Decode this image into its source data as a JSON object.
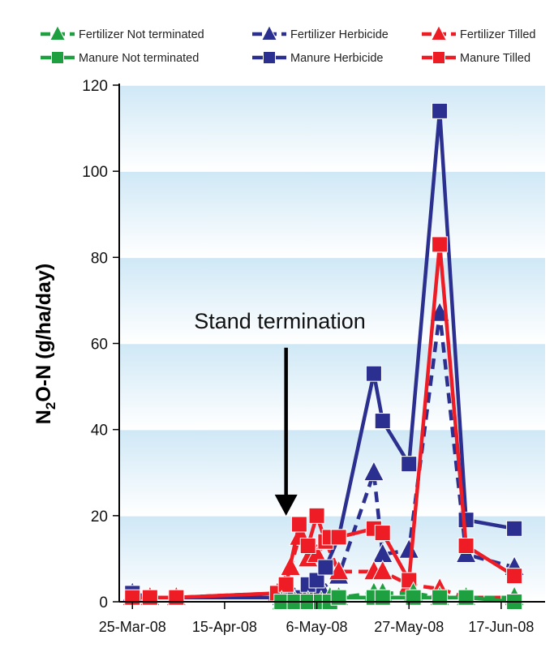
{
  "chart_data": {
    "type": "line",
    "title": "",
    "xlabel": "",
    "ylabel": "N2O-N (g/ha/day)",
    "ylabel_parts": {
      "before": "N",
      "sub": "2",
      "after": "O-N (g/ha/day)"
    },
    "x_type": "date",
    "xlim": [
      "2008-03-22",
      "2008-06-27"
    ],
    "ylim": [
      0,
      120
    ],
    "y_ticks": [
      0,
      20,
      40,
      60,
      80,
      100,
      120
    ],
    "x_ticks": [
      {
        "date": "2008-03-25",
        "label": "25-Mar-08"
      },
      {
        "date": "2008-04-15",
        "label": "15-Apr-08"
      },
      {
        "date": "2008-05-06",
        "label": "6-May-08"
      },
      {
        "date": "2008-05-27",
        "label": "27-May-08"
      },
      {
        "date": "2008-06-17",
        "label": "17-Jun-08"
      }
    ],
    "background": "light blue gradient bands between gridlines",
    "grid": true,
    "legend_position": "top",
    "annotations": [
      {
        "text": "Stand termination",
        "arrow_date": "2008-04-29",
        "arrow_from": 59,
        "arrow_to": 20
      }
    ],
    "series": [
      {
        "name": "Fertilizer Not terminated",
        "color": "#1ea040",
        "marker": "triangle",
        "line": "dashed",
        "points": [
          [
            "2008-04-28",
            0
          ],
          [
            "2008-05-01",
            0
          ],
          [
            "2008-05-04",
            0
          ],
          [
            "2008-05-07",
            0
          ],
          [
            "2008-05-09",
            1
          ],
          [
            "2008-05-11",
            1
          ],
          [
            "2008-05-19",
            2
          ],
          [
            "2008-05-21",
            2
          ],
          [
            "2008-05-28",
            2
          ],
          [
            "2008-06-03",
            1
          ],
          [
            "2008-06-09",
            1
          ],
          [
            "2008-06-20",
            1
          ]
        ]
      },
      {
        "name": "Fertilizer Herbicide",
        "color": "#2b2f8f",
        "marker": "triangle",
        "line": "dashed",
        "points": [
          [
            "2008-03-25",
            2
          ],
          [
            "2008-03-29",
            1
          ],
          [
            "2008-04-04",
            1
          ],
          [
            "2008-04-28",
            1
          ],
          [
            "2008-05-01",
            1
          ],
          [
            "2008-05-04",
            2
          ],
          [
            "2008-05-07",
            3
          ],
          [
            "2008-05-11",
            6
          ],
          [
            "2008-05-19",
            30
          ],
          [
            "2008-05-21",
            11
          ],
          [
            "2008-05-27",
            12
          ],
          [
            "2008-06-03",
            67
          ],
          [
            "2008-06-09",
            11
          ],
          [
            "2008-06-20",
            8
          ]
        ]
      },
      {
        "name": "Fertilizer Tilled",
        "color": "#ee1c25",
        "marker": "triangle",
        "line": "dashed",
        "points": [
          [
            "2008-03-25",
            1
          ],
          [
            "2008-03-29",
            1
          ],
          [
            "2008-04-04",
            1
          ],
          [
            "2008-04-27",
            2
          ],
          [
            "2008-04-30",
            8
          ],
          [
            "2008-05-02",
            15
          ],
          [
            "2008-05-04",
            10
          ],
          [
            "2008-05-06",
            11
          ],
          [
            "2008-05-08",
            14
          ],
          [
            "2008-05-11",
            7
          ],
          [
            "2008-05-19",
            7
          ],
          [
            "2008-05-21",
            7
          ],
          [
            "2008-05-27",
            4
          ],
          [
            "2008-06-03",
            3
          ],
          [
            "2008-06-09",
            1
          ],
          [
            "2008-06-20",
            1
          ]
        ]
      },
      {
        "name": "Manure Not terminated",
        "color": "#1ea040",
        "marker": "square",
        "line": "solid",
        "points": [
          [
            "2008-04-28",
            0
          ],
          [
            "2008-05-01",
            0
          ],
          [
            "2008-05-04",
            0
          ],
          [
            "2008-05-07",
            0
          ],
          [
            "2008-05-09",
            0
          ],
          [
            "2008-05-11",
            1
          ],
          [
            "2008-05-19",
            1
          ],
          [
            "2008-05-21",
            1
          ],
          [
            "2008-05-28",
            1
          ],
          [
            "2008-06-03",
            1
          ],
          [
            "2008-06-09",
            1
          ],
          [
            "2008-06-20",
            0
          ]
        ]
      },
      {
        "name": "Manure Herbicide",
        "color": "#2b2f8f",
        "marker": "square",
        "line": "solid",
        "points": [
          [
            "2008-03-25",
            2
          ],
          [
            "2008-03-29",
            1
          ],
          [
            "2008-04-04",
            1
          ],
          [
            "2008-04-28",
            1
          ],
          [
            "2008-05-01",
            1
          ],
          [
            "2008-05-04",
            4
          ],
          [
            "2008-05-06",
            5
          ],
          [
            "2008-05-08",
            8
          ],
          [
            "2008-05-11",
            15
          ],
          [
            "2008-05-19",
            53
          ],
          [
            "2008-05-21",
            42
          ],
          [
            "2008-05-27",
            32
          ],
          [
            "2008-06-03",
            114
          ],
          [
            "2008-06-09",
            19
          ],
          [
            "2008-06-20",
            17
          ]
        ]
      },
      {
        "name": "Manure Tilled",
        "color": "#ee1c25",
        "marker": "square",
        "line": "solid",
        "points": [
          [
            "2008-03-25",
            1
          ],
          [
            "2008-03-29",
            1
          ],
          [
            "2008-04-04",
            1
          ],
          [
            "2008-04-27",
            2
          ],
          [
            "2008-04-29",
            4
          ],
          [
            "2008-05-02",
            18
          ],
          [
            "2008-05-04",
            13
          ],
          [
            "2008-05-06",
            20
          ],
          [
            "2008-05-08",
            14
          ],
          [
            "2008-05-09",
            15
          ],
          [
            "2008-05-11",
            15
          ],
          [
            "2008-05-19",
            17
          ],
          [
            "2008-05-21",
            16
          ],
          [
            "2008-05-27",
            5
          ],
          [
            "2008-06-03",
            83
          ],
          [
            "2008-06-09",
            13
          ],
          [
            "2008-06-20",
            6
          ]
        ]
      }
    ]
  }
}
